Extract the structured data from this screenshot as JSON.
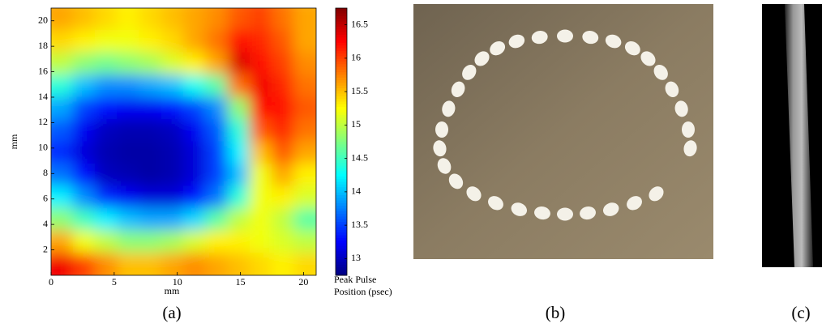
{
  "chart_data": {
    "type": "heatmap",
    "colormap": "jet",
    "x": [
      0.875,
      2.625,
      4.375,
      6.125,
      7.875,
      9.625,
      11.375,
      13.125,
      14.875,
      16.625,
      18.375,
      20.125
    ],
    "y": [
      20.125,
      18.375,
      16.625,
      14.875,
      13.125,
      11.375,
      9.625,
      7.875,
      6.125,
      4.375,
      2.625,
      0.875
    ],
    "z": [
      [
        15.6,
        15.5,
        15.4,
        15.3,
        15.4,
        15.5,
        15.6,
        15.7,
        15.9,
        16.0,
        15.8,
        15.6
      ],
      [
        15.4,
        15.3,
        15.2,
        15.2,
        15.3,
        15.4,
        15.6,
        15.8,
        16.2,
        16.1,
        15.9,
        15.6
      ],
      [
        15.0,
        14.8,
        14.7,
        14.8,
        14.9,
        15.1,
        15.3,
        15.6,
        16.4,
        16.2,
        16.0,
        15.7
      ],
      [
        14.4,
        14.0,
        13.8,
        13.8,
        13.9,
        14.0,
        14.3,
        14.6,
        15.8,
        16.3,
        16.1,
        15.8
      ],
      [
        13.9,
        13.5,
        13.3,
        13.2,
        13.2,
        13.3,
        13.5,
        13.8,
        14.8,
        16.2,
        16.2,
        15.9
      ],
      [
        13.6,
        13.2,
        13.0,
        12.95,
        12.95,
        13.0,
        13.2,
        13.6,
        14.4,
        15.9,
        16.1,
        15.8
      ],
      [
        13.4,
        13.1,
        12.95,
        12.9,
        12.9,
        12.95,
        13.1,
        13.5,
        14.2,
        15.5,
        15.9,
        15.6
      ],
      [
        13.7,
        13.3,
        13.0,
        12.95,
        12.9,
        12.95,
        13.1,
        13.5,
        14.0,
        15.2,
        15.6,
        15.3
      ],
      [
        14.2,
        13.8,
        13.4,
        13.2,
        13.1,
        13.1,
        13.3,
        13.7,
        14.4,
        15.2,
        15.3,
        15.1
      ],
      [
        14.8,
        14.5,
        14.2,
        14.0,
        13.9,
        13.9,
        14.1,
        14.6,
        15.0,
        15.2,
        15.0,
        14.6
      ],
      [
        15.6,
        15.2,
        15.0,
        14.8,
        14.8,
        14.9,
        15.1,
        15.3,
        15.3,
        15.2,
        15.1,
        15.0
      ],
      [
        16.3,
        16.0,
        15.7,
        15.5,
        15.5,
        15.6,
        15.7,
        15.6,
        15.5,
        15.4,
        15.3,
        15.4
      ]
    ],
    "xlim": [
      0,
      21
    ],
    "ylim": [
      0,
      21
    ],
    "xticks": [
      0,
      5,
      10,
      15,
      20
    ],
    "yticks": [
      2,
      4,
      6,
      8,
      10,
      12,
      14,
      16,
      18,
      20
    ],
    "xlabel": "mm",
    "ylabel": "mm",
    "clim": [
      12.75,
      16.75
    ],
    "cticks": [
      13,
      13.5,
      14,
      14.5,
      15,
      15.5,
      16,
      16.5
    ],
    "colorbar_label": [
      "Peak Pulse",
      "Position (psec)"
    ]
  },
  "panel_labels": [
    "(a)",
    "(b)",
    "(c)"
  ]
}
